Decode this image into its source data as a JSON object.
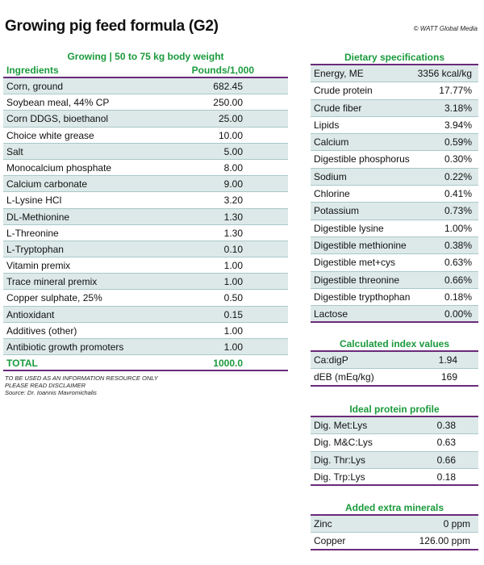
{
  "title": "Growing pig feed formula (G2)",
  "credit": "© WATT Global Media",
  "ingredients_table": {
    "section_title": "Growing | 50 to 75 kg body weight",
    "col_ingredients": "Ingredients",
    "col_amount": "Pounds/1,000",
    "rows": [
      {
        "name": "Corn, ground",
        "value": "682.45"
      },
      {
        "name": "Soybean meal, 44% CP",
        "value": "250.00"
      },
      {
        "name": "Corn DDGS, bioethanol",
        "value": "25.00"
      },
      {
        "name": "Choice white grease",
        "value": "10.00"
      },
      {
        "name": "Salt",
        "value": "5.00"
      },
      {
        "name": "Monocalcium phosphate",
        "value": "8.00"
      },
      {
        "name": "Calcium carbonate",
        "value": "9.00"
      },
      {
        "name": "L-Lysine HCl",
        "value": "3.20"
      },
      {
        "name": "DL-Methionine",
        "value": "1.30"
      },
      {
        "name": "L-Threonine",
        "value": "1.30"
      },
      {
        "name": "L-Tryptophan",
        "value": "0.10"
      },
      {
        "name": "Vitamin premix",
        "value": "1.00"
      },
      {
        "name": "Trace mineral premix",
        "value": "1.00"
      },
      {
        "name": "Copper sulphate, 25%",
        "value": "0.50"
      },
      {
        "name": "Antioxidant",
        "value": "0.15"
      },
      {
        "name": "Additives (other)",
        "value": "1.00"
      },
      {
        "name": "Antibiotic growth promoters",
        "value": "1.00"
      }
    ],
    "total_label": "TOTAL",
    "total_value": "1000.0"
  },
  "notes": {
    "line1": "TO BE USED AS AN INFORMATION RESOURCE ONLY",
    "line2": "PLEASE READ DISCLAIMER",
    "line3": "Source: Dr. Ioannis Mavromichalis"
  },
  "dietary": {
    "section_title": "Dietary specifications",
    "rows": [
      {
        "name": "Energy, ME",
        "value": "3356 kcal/kg"
      },
      {
        "name": "Crude protein",
        "value": "17.77%"
      },
      {
        "name": "Crude fiber",
        "value": "3.18%"
      },
      {
        "name": "Lipids",
        "value": "3.94%"
      },
      {
        "name": "Calcium",
        "value": "0.59%"
      },
      {
        "name": "Digestible phosphorus",
        "value": "0.30%"
      },
      {
        "name": "Sodium",
        "value": "0.22%"
      },
      {
        "name": "Chlorine",
        "value": "0.41%"
      },
      {
        "name": "Potassium",
        "value": "0.73%"
      },
      {
        "name": "Digestible lysine",
        "value": "1.00%"
      },
      {
        "name": "Digestible methionine",
        "value": "0.38%"
      },
      {
        "name": "Digestible met+cys",
        "value": "0.63%"
      },
      {
        "name": "Digestible threonine",
        "value": "0.66%"
      },
      {
        "name": "Digestible trypthophan",
        "value": "0.18%"
      },
      {
        "name": "Lactose",
        "value": "0.00%"
      }
    ]
  },
  "index_values": {
    "section_title": "Calculated index values",
    "rows": [
      {
        "name": "Ca:digP",
        "value": "1.94"
      },
      {
        "name": "dEB (mEq/kg)",
        "value": "169"
      }
    ]
  },
  "protein_profile": {
    "section_title": "Ideal protein profile",
    "rows": [
      {
        "name": "Dig. Met:Lys",
        "value": "0.38"
      },
      {
        "name": "Dig. M&C:Lys",
        "value": "0.63"
      },
      {
        "name": "Dig. Thr:Lys",
        "value": "0.66"
      },
      {
        "name": "Dig. Trp:Lys",
        "value": "0.18"
      }
    ]
  },
  "minerals": {
    "section_title": "Added extra minerals",
    "rows": [
      {
        "name": "Zinc",
        "value": "0 ppm"
      },
      {
        "name": "Copper",
        "value": "126.00 ppm"
      }
    ]
  },
  "colors": {
    "accent_green": "#1a9a3c",
    "rule_purple": "#6a2a7a",
    "row_shade": "#dde9e9"
  }
}
